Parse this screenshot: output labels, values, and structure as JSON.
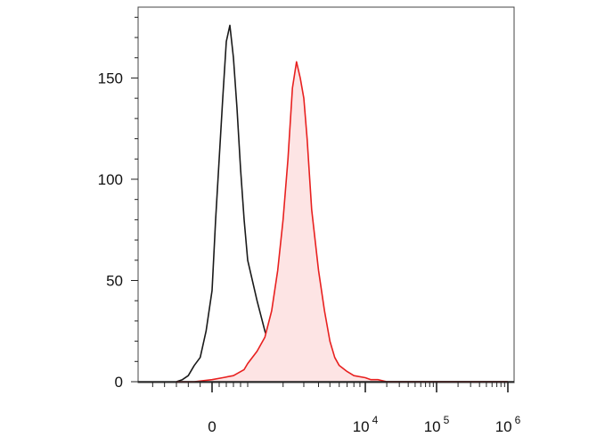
{
  "chart_data": {
    "type": "area",
    "title": "",
    "xlabel": "",
    "ylabel": "",
    "ylim": [
      0,
      185
    ],
    "x_scale": "biexponential",
    "y_ticks": [
      {
        "label": "0",
        "value": 0
      },
      {
        "label": "50",
        "value": 50
      },
      {
        "label": "100",
        "value": 100
      },
      {
        "label": "150",
        "value": 150
      }
    ],
    "x_ticks": [
      {
        "base": "0",
        "exp": "",
        "value": 0
      },
      {
        "base": "10",
        "exp": "4",
        "value": 10000
      },
      {
        "base": "10",
        "exp": "5",
        "value": 100000
      },
      {
        "base": "10",
        "exp": "6",
        "value": 1000000
      }
    ],
    "series": [
      {
        "color": "#1a1a1a",
        "fill": "none",
        "x": [
          -600,
          -500,
          -400,
          -300,
          -200,
          -100,
          0,
          100,
          200,
          300,
          400,
          500,
          600,
          700,
          800,
          900,
          1000,
          1200,
          1400,
          1600,
          1800,
          2000,
          2200,
          2400,
          2600,
          2800,
          3000,
          3500,
          4000,
          4500,
          5000,
          6000,
          8000,
          10000,
          20000,
          100000,
          1000000
        ],
        "values": [
          0,
          1,
          3,
          8,
          12,
          25,
          45,
          80,
          110,
          140,
          168,
          176,
          160,
          135,
          105,
          80,
          60,
          40,
          25,
          15,
          9,
          5,
          3,
          2,
          1,
          1,
          0,
          0,
          0,
          0,
          0,
          0,
          0,
          0,
          0,
          0,
          0
        ]
      },
      {
        "color": "#e8201f",
        "fill": "#fde4e4",
        "x": [
          -600,
          -300,
          0,
          300,
          600,
          900,
          1000,
          1200,
          1400,
          1600,
          1800,
          2000,
          2200,
          2400,
          2600,
          2800,
          3000,
          3200,
          3500,
          4000,
          4500,
          5000,
          5500,
          6000,
          7000,
          8000,
          10000,
          12000,
          15000,
          20000,
          100000,
          1000000
        ],
        "values": [
          0,
          0,
          1,
          2,
          3,
          6,
          9,
          15,
          22,
          35,
          55,
          80,
          110,
          145,
          158,
          150,
          140,
          120,
          85,
          55,
          35,
          20,
          12,
          8,
          5,
          3,
          2,
          1,
          1,
          0,
          0,
          0
        ]
      }
    ]
  }
}
